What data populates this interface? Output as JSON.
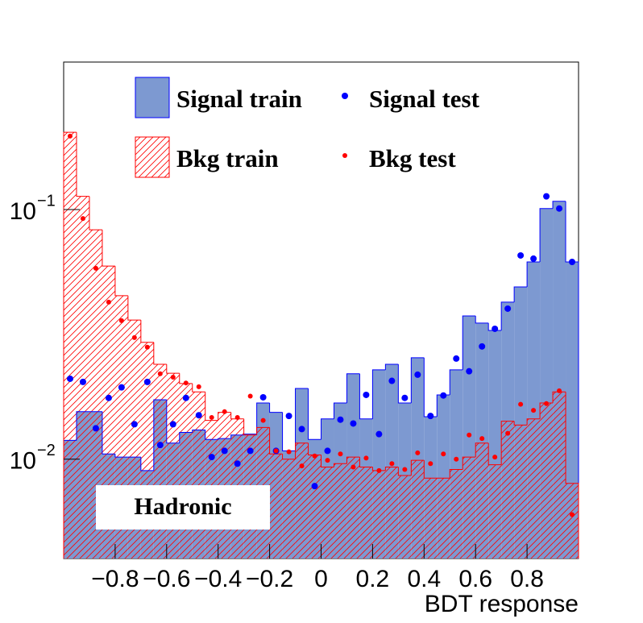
{
  "chart_data": {
    "type": "histogram",
    "xlabel": "BDT response",
    "annotation": "Hadronic",
    "bins": [
      -1,
      -0.95,
      -0.9,
      -0.85,
      -0.8,
      -0.75,
      -0.7,
      -0.65,
      -0.6,
      -0.55,
      -0.5,
      -0.45,
      -0.4,
      -0.35,
      -0.3,
      -0.25,
      -0.2,
      -0.15,
      -0.1,
      -0.05,
      0,
      0.05,
      0.1,
      0.15,
      0.2,
      0.25,
      0.3,
      0.35,
      0.4,
      0.45,
      0.5,
      0.55,
      0.6,
      0.65,
      0.7,
      0.75,
      0.8,
      0.85,
      0.9,
      0.95,
      1
    ],
    "series": [
      {
        "name": "Signal train",
        "style": "filled",
        "color": "#0000ff",
        "fill": "#7d99d1",
        "values": [
          0.0119,
          0.0155,
          0.0155,
          0.0105,
          0.0102,
          0.0102,
          0.009,
          0.0173,
          0.0116,
          0.0128,
          0.0131,
          0.012,
          0.0121,
          0.0125,
          0.0126,
          0.0168,
          0.0154,
          0.0108,
          0.0192,
          0.012,
          0.0145,
          0.0168,
          0.022,
          0.0145,
          0.0228,
          0.024,
          0.0168,
          0.0255,
          0.0148,
          0.0181,
          0.0228,
          0.0375,
          0.0351,
          0.0328,
          0.0426,
          0.049,
          0.0617,
          0.101,
          0.108,
          0.0617
        ]
      },
      {
        "name": "Bkg train",
        "style": "hatched",
        "color": "#ff0000",
        "values": [
          0.204,
          0.113,
          0.083,
          0.0594,
          0.0452,
          0.0361,
          0.0294,
          0.024,
          0.0221,
          0.0201,
          0.0186,
          0.0143,
          0.0154,
          0.0145,
          0.0125,
          0.0134,
          0.0105,
          0.01,
          0.0116,
          0.0104,
          0.0093,
          0.0096,
          0.0102,
          0.0093,
          0.009,
          0.0093,
          0.0086,
          0.0099,
          0.0084,
          0.0084,
          0.0091,
          0.0102,
          0.0116,
          0.0095,
          0.0142,
          0.0137,
          0.0145,
          0.0168,
          0.0186,
          0.008
        ]
      },
      {
        "name": "Signal test",
        "style": "points",
        "color": "#0000ff",
        "values": [
          0.021,
          0.0204,
          0.0133,
          0.0176,
          0.0194,
          0.0138,
          0.0204,
          0.0114,
          0.0138,
          0.0176,
          0.015,
          0.0102,
          0.0108,
          0.0096,
          0.0108,
          0.0177,
          0.0108,
          0.0149,
          0.0132,
          0.0078,
          0.0108,
          0.0144,
          0.0139,
          0.0181,
          0.0126,
          0.0206,
          0.0176,
          0.0218,
          0.0149,
          0.018,
          0.0253,
          0.0225,
          0.0283,
          0.0333,
          0.0401,
          0.0655,
          0.0636,
          0.113,
          0.101,
          0.0617
        ]
      },
      {
        "name": "Bkg test",
        "style": "points",
        "color": "#ff0000",
        "values": [
          0.197,
          0.0921,
          0.0582,
          0.0426,
          0.0359,
          0.0307,
          0.0281,
          0.022,
          0.0213,
          0.0202,
          0.0195,
          0.0147,
          0.0155,
          0.0147,
          0.0179,
          0.0143,
          0.0108,
          0.0107,
          0.0094,
          0.0103,
          0.0099,
          0.0105,
          0.0093,
          0.0101,
          0.009,
          0.0096,
          0.0091,
          0.0106,
          0.0096,
          0.0105,
          0.01,
          0.0125,
          0.0121,
          0.0102,
          0.0127,
          0.0166,
          0.0157,
          0.0167,
          0.0188,
          0.006
        ]
      }
    ],
    "xlim": [
      -1,
      1
    ],
    "ylim": [
      0.004,
      0.39
    ],
    "log_y": true,
    "xticks": [
      {
        "value": -0.8,
        "label": "−0.8"
      },
      {
        "value": -0.6,
        "label": "−0.6"
      },
      {
        "value": -0.4,
        "label": "−0.4"
      },
      {
        "value": -0.2,
        "label": "−0.2"
      },
      0,
      0.2,
      0.4,
      0.6,
      0.8
    ],
    "yticks": [
      {
        "value": 0.01,
        "label": "10",
        "exponent": "−2"
      },
      {
        "value": 0.1,
        "label": "10",
        "exponent": "−1"
      }
    ]
  }
}
